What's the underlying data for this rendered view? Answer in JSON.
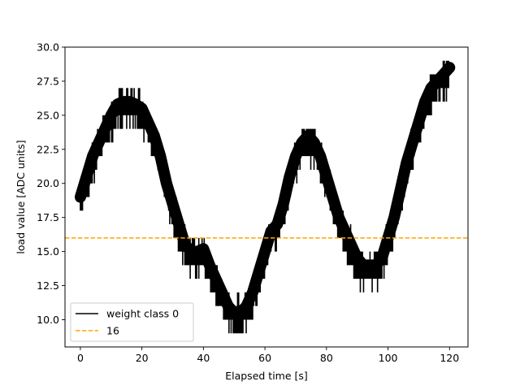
{
  "chart_data": {
    "type": "line",
    "title": "",
    "xlabel": "Elapsed time [s]",
    "ylabel": "load value [ADC units]",
    "xlim": [
      -5,
      126
    ],
    "ylim": [
      8,
      30
    ],
    "xticks": [
      0,
      20,
      40,
      60,
      80,
      100,
      120
    ],
    "xtick_labels": [
      "0",
      "20",
      "40",
      "60",
      "80",
      "100",
      "120"
    ],
    "yticks": [
      10.0,
      12.5,
      15.0,
      17.5,
      20.0,
      22.5,
      25.0,
      27.5,
      30.0
    ],
    "ytick_labels": [
      "10.0",
      "12.5",
      "15.0",
      "17.5",
      "20.0",
      "22.5",
      "25.0",
      "27.5",
      "30.0"
    ],
    "grid": false,
    "legend_position": "lower-left",
    "series": [
      {
        "name": "weight class 0",
        "style": "solid",
        "color": "#000000",
        "x": [
          0,
          2,
          4,
          6,
          8,
          10,
          12,
          14,
          16,
          18,
          20,
          22,
          24,
          26,
          28,
          30,
          32,
          34,
          36,
          38,
          40,
          42,
          44,
          46,
          48,
          50,
          52,
          54,
          56,
          58,
          60,
          62,
          64,
          66,
          68,
          70,
          72,
          74,
          76,
          78,
          80,
          82,
          84,
          86,
          88,
          90,
          92,
          94,
          96,
          98,
          100,
          102,
          104,
          106,
          108,
          110,
          112,
          114,
          116,
          118,
          120
        ],
        "y": [
          19.0,
          20.5,
          22.0,
          23.0,
          24.0,
          25.0,
          25.8,
          26.0,
          26.0,
          25.8,
          25.5,
          24.5,
          23.5,
          22.0,
          20.0,
          18.5,
          17.0,
          15.5,
          15.0,
          15.0,
          15.2,
          14.0,
          13.0,
          12.0,
          11.0,
          10.5,
          10.5,
          11.0,
          12.0,
          13.5,
          15.0,
          16.5,
          17.0,
          18.5,
          20.5,
          22.0,
          23.0,
          23.5,
          23.0,
          22.0,
          20.5,
          19.0,
          17.5,
          16.5,
          15.5,
          14.5,
          14.0,
          14.0,
          14.0,
          14.5,
          16.0,
          17.5,
          19.5,
          21.5,
          23.0,
          24.5,
          26.0,
          27.0,
          27.5,
          28.0,
          28.5
        ]
      },
      {
        "name": "16",
        "style": "dashed",
        "color": "#ffa500",
        "x": [
          -5,
          126
        ],
        "y": [
          16,
          16
        ]
      }
    ]
  }
}
